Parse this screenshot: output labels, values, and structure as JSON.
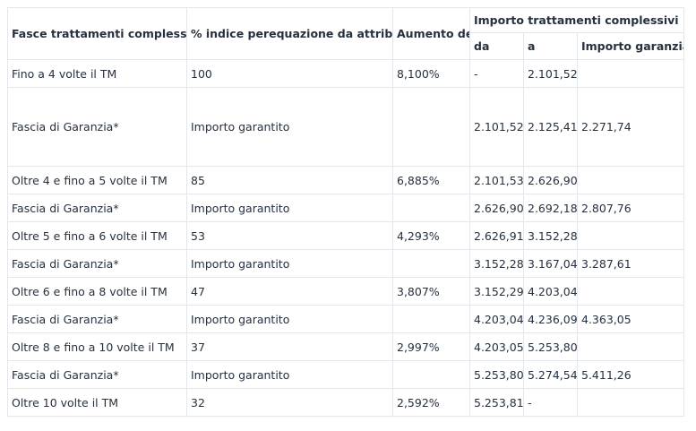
{
  "table": {
    "headers": {
      "fasce": "Fasce trattamenti complessivi",
      "indice": "% indice perequazione da attribuire",
      "aumento": "Aumento del",
      "importo_group": "Importo trattamenti complessivi",
      "da": "da",
      "a": "a",
      "garanzia": "Importo garanzia"
    },
    "rows": [
      {
        "fascia": "Fino a 4 volte il TM",
        "indice": "100",
        "aumento": "8,100%",
        "da": "-",
        "a": "2.101,52",
        "garanzia": ""
      },
      {
        "fascia": "Fascia di Garanzia*",
        "indice": "Importo garantito",
        "aumento": "",
        "da": "2.101,52",
        "a": "2.125,41",
        "garanzia": "2.271,74"
      },
      {
        "fascia": "Oltre 4 e fino a 5 volte il TM",
        "indice": "85",
        "aumento": "6,885%",
        "da": "2.101,53",
        "a": "2.626,90",
        "garanzia": ""
      },
      {
        "fascia": "Fascia di Garanzia*",
        "indice": "Importo garantito",
        "aumento": "",
        "da": "2.626,90",
        "a": "2.692,18",
        "garanzia": "2.807,76"
      },
      {
        "fascia": "Oltre 5 e fino a 6 volte il TM",
        "indice": "53",
        "aumento": "4,293%",
        "da": "2.626,91",
        "a": "3.152,28",
        "garanzia": ""
      },
      {
        "fascia": "Fascia di Garanzia*",
        "indice": "Importo garantito",
        "aumento": "",
        "da": "3.152,28",
        "a": "3.167,04",
        "garanzia": "3.287,61"
      },
      {
        "fascia": "Oltre 6 e fino a 8 volte il TM",
        "indice": "47",
        "aumento": "3,807%",
        "da": "3.152,29",
        "a": "4.203,04",
        "garanzia": ""
      },
      {
        "fascia": "Fascia di Garanzia*",
        "indice": "Importo garantito",
        "aumento": "",
        "da": "4.203,04",
        "a": "4.236,09",
        "garanzia": "4.363,05"
      },
      {
        "fascia": "Oltre 8 e fino a 10 volte il TM",
        "indice": "37",
        "aumento": "2,997%",
        "da": "4.203,05",
        "a": "5.253,80",
        "garanzia": ""
      },
      {
        "fascia": "Fascia di Garanzia*",
        "indice": "Importo garantito",
        "aumento": "",
        "da": "5.253,80",
        "a": "5.274,54",
        "garanzia": "5.411,26"
      },
      {
        "fascia": "Oltre 10 volte il TM",
        "indice": "32",
        "aumento": "2,592%",
        "da": "5.253,81",
        "a": "-",
        "garanzia": ""
      }
    ]
  }
}
